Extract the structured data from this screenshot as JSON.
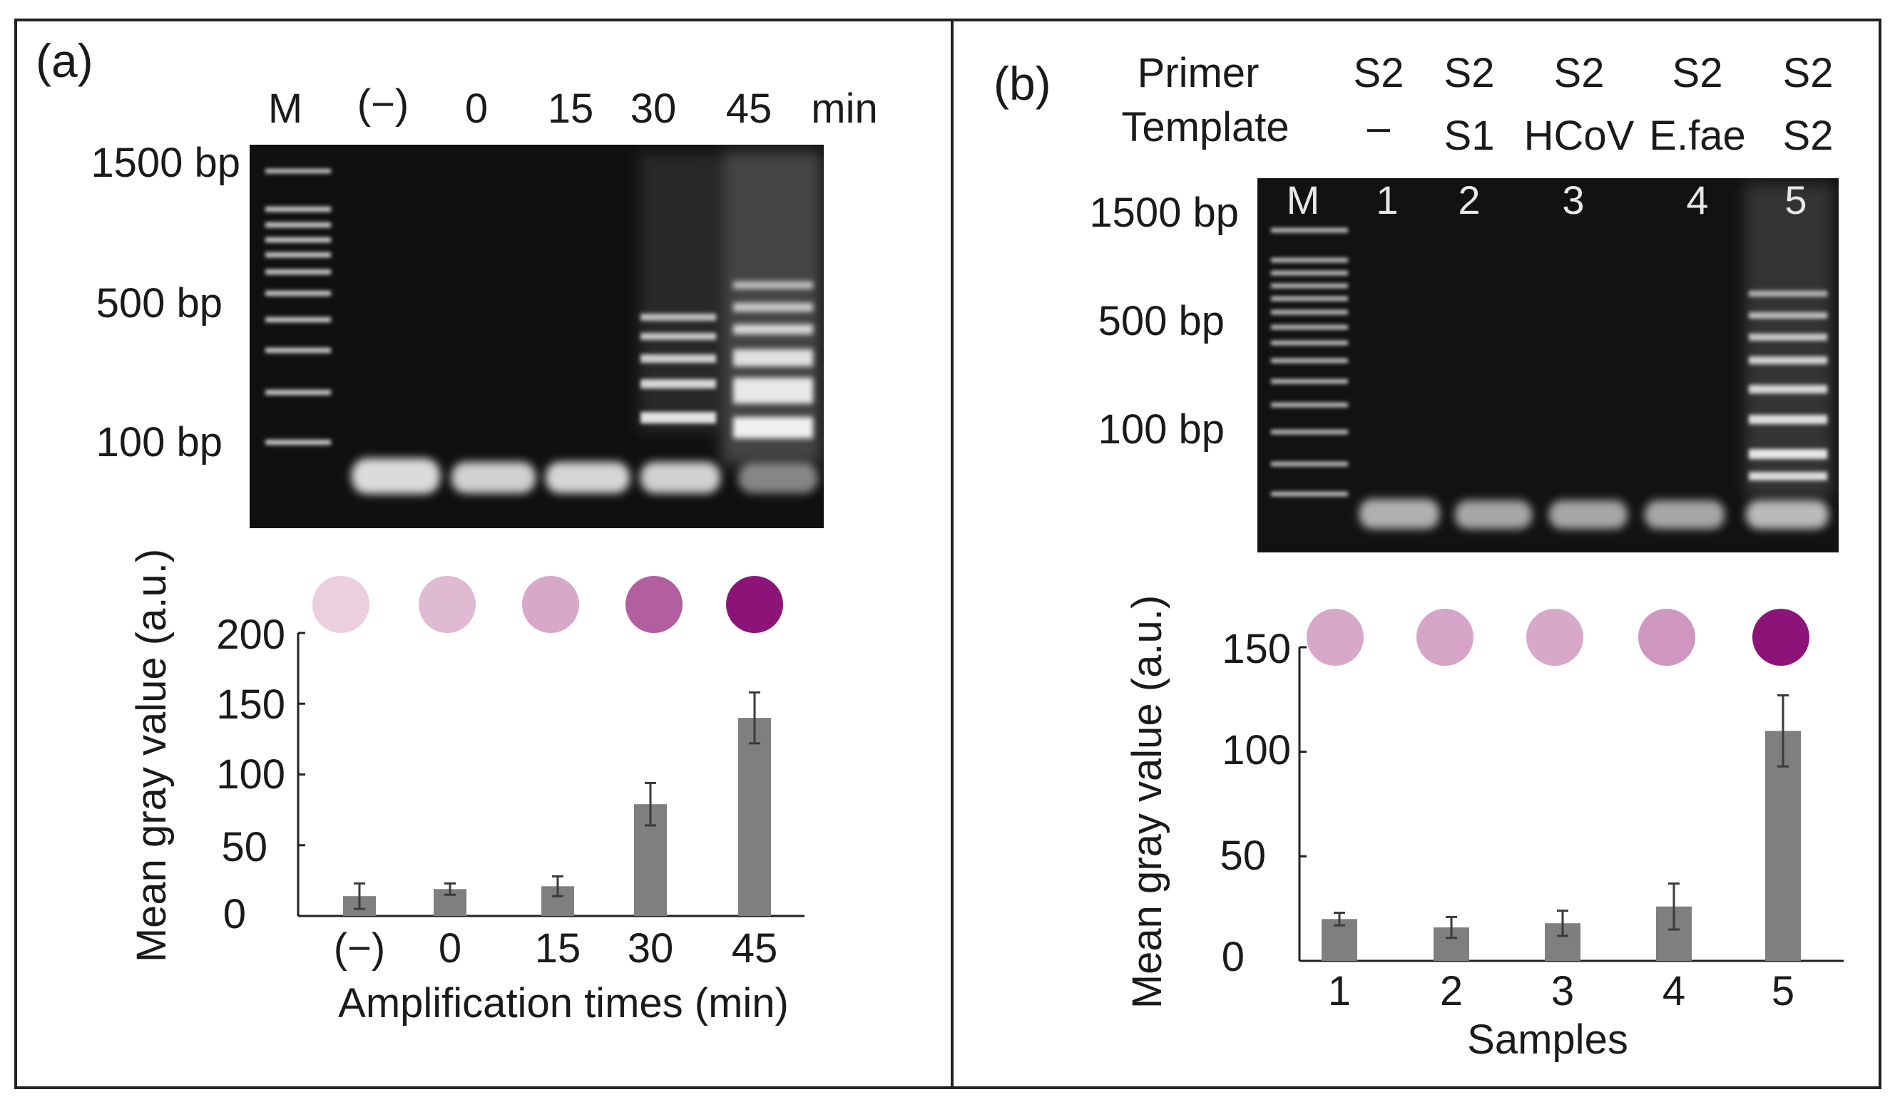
{
  "panels": {
    "a": {
      "label": "(a)",
      "gel": {
        "lane_labels": [
          "M",
          "(−)",
          "0",
          "15",
          "30",
          "45"
        ],
        "unit": "min",
        "ladder_labels": [
          "1500 bp",
          "500 bp",
          "100 bp"
        ]
      }
    },
    "b": {
      "label": "(b)",
      "rows": {
        "primer_label": "Primer",
        "template_label": "Template"
      },
      "primers": [
        "S2",
        "S2",
        "S2",
        "S2",
        "S2"
      ],
      "templates": [
        "–",
        "S1",
        "HCoV",
        "E.fae",
        "S2"
      ],
      "gel": {
        "lane_labels": [
          "M",
          "1",
          "2",
          "3",
          "4",
          "5"
        ],
        "ladder_labels": [
          "1500 bp",
          "500 bp",
          "100 bp"
        ]
      }
    }
  },
  "chart_data": [
    {
      "type": "bar",
      "panel": "a",
      "categories": [
        "(−)",
        "0",
        "15",
        "30",
        "45"
      ],
      "values": [
        14,
        19,
        21,
        79,
        140
      ],
      "errors": [
        9,
        4,
        7,
        15,
        18
      ],
      "xlabel": "Amplification times (min)",
      "ylabel": "Mean gray value (a.u.)",
      "ylim": [
        0,
        200
      ],
      "yticks": [
        "0",
        "50",
        "100",
        "150",
        "200"
      ],
      "bar_color": "#7f7f7f",
      "dot_intensity": [
        0.12,
        0.22,
        0.3,
        0.65,
        1.0
      ]
    },
    {
      "type": "bar",
      "panel": "b",
      "categories": [
        "1",
        "2",
        "3",
        "4",
        "5"
      ],
      "values": [
        20,
        16,
        18,
        26,
        110
      ],
      "errors": [
        3,
        5,
        6,
        11,
        17
      ],
      "xlabel": "Samples",
      "ylabel": "Mean gray value (a.u.)",
      "ylim": [
        0,
        150
      ],
      "yticks": [
        "0",
        "50",
        "100",
        "150"
      ],
      "bar_color": "#7f7f7f",
      "dot_intensity": [
        0.3,
        0.32,
        0.3,
        0.38,
        1.0
      ]
    }
  ]
}
